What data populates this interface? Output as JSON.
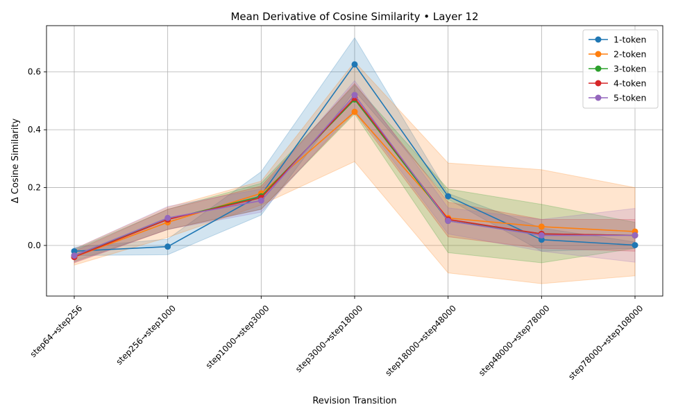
{
  "chart_data": {
    "type": "line",
    "title": "Mean Derivative of Cosine Similarity • Layer 12",
    "xlabel": "Revision Transition",
    "ylabel": "Δ Cosine Similarity",
    "categories": [
      "step64→step256",
      "step256→step1000",
      "step1000→step3000",
      "step3000→step18000",
      "step18000→step48000",
      "step48000→step78000",
      "step78000→step108000"
    ],
    "ylim": [
      -0.175,
      0.76
    ],
    "yticks": [
      0.0,
      0.2,
      0.4,
      0.6
    ],
    "ytick_labels": [
      "0.0",
      "0.2",
      "0.4",
      "0.6"
    ],
    "grid": true,
    "legend_position": "top-right",
    "series": [
      {
        "name": "1-token",
        "color": "#1f77b4",
        "values": [
          -0.02,
          -0.004,
          0.175,
          0.626,
          0.17,
          0.02,
          0.001
        ],
        "lower": [
          -0.035,
          -0.032,
          0.105,
          0.535,
          0.16,
          -0.02,
          -0.01
        ],
        "upper": [
          -0.006,
          0.022,
          0.255,
          0.718,
          0.18,
          0.06,
          0.012
        ]
      },
      {
        "name": "2-token",
        "color": "#ff7f0e",
        "values": [
          -0.04,
          0.08,
          0.18,
          0.462,
          0.095,
          0.065,
          0.048
        ],
        "lower": [
          -0.068,
          0.028,
          0.14,
          0.29,
          -0.095,
          -0.132,
          -0.105
        ],
        "upper": [
          -0.012,
          0.132,
          0.222,
          0.635,
          0.285,
          0.262,
          0.2
        ]
      },
      {
        "name": "3-token",
        "color": "#2ca02c",
        "values": [
          -0.035,
          0.09,
          0.17,
          0.505,
          0.085,
          0.04,
          0.035
        ],
        "lower": [
          -0.055,
          0.055,
          0.125,
          0.455,
          -0.025,
          -0.06,
          -0.01
        ],
        "upper": [
          -0.015,
          0.125,
          0.215,
          0.555,
          0.195,
          0.142,
          0.08
        ]
      },
      {
        "name": "4-token",
        "color": "#d62728",
        "values": [
          -0.04,
          0.09,
          0.165,
          0.51,
          0.09,
          0.04,
          0.035
        ],
        "lower": [
          -0.06,
          0.055,
          0.125,
          0.46,
          0.03,
          -0.01,
          -0.02
        ],
        "upper": [
          -0.02,
          0.125,
          0.205,
          0.56,
          0.15,
          0.09,
          0.09
        ]
      },
      {
        "name": "5-token",
        "color": "#9467bd",
        "values": [
          -0.035,
          0.095,
          0.155,
          0.52,
          0.085,
          0.035,
          0.035
        ],
        "lower": [
          -0.058,
          0.055,
          0.115,
          0.47,
          0.04,
          -0.02,
          -0.058
        ],
        "upper": [
          -0.012,
          0.135,
          0.195,
          0.57,
          0.13,
          0.09,
          0.128
        ]
      }
    ]
  }
}
